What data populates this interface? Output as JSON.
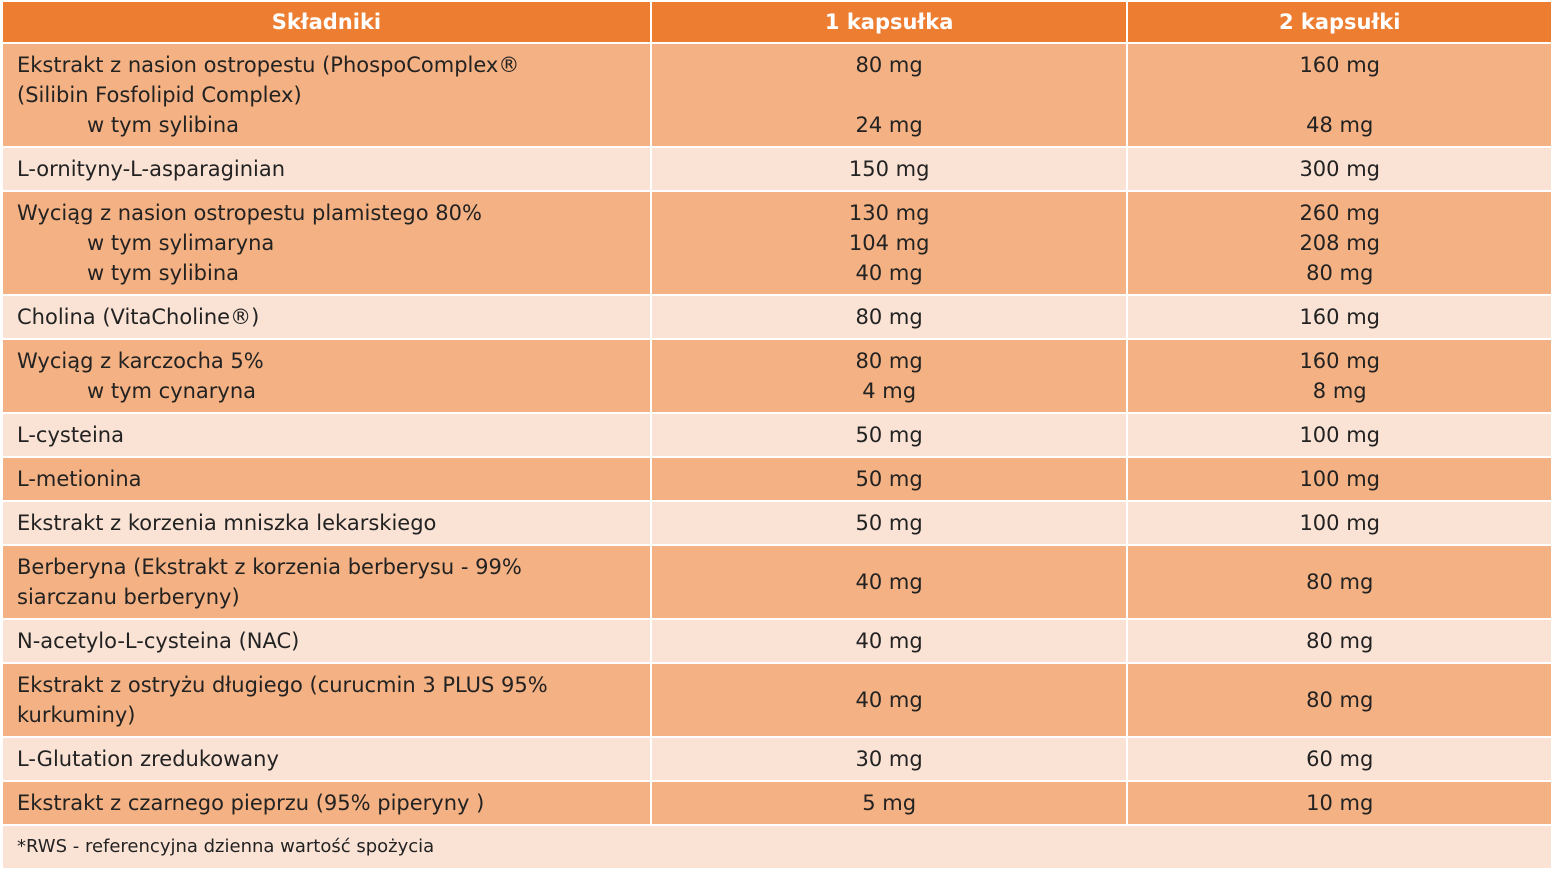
{
  "table": {
    "header": [
      "Składniki",
      "1 kapsułka",
      "2 kapsułki"
    ],
    "rows": [
      {
        "label": [
          "Ekstrakt z nasion ostropestu (PhospoComplex®",
          "(Silibin Fosfolipid Complex)"
        ],
        "one": "80 mg",
        "two": "160 mg",
        "sub": [
          {
            "label": "w tym sylibina",
            "one": "24 mg",
            "two": "48 mg"
          }
        ]
      },
      {
        "label": [
          "L-ornityny-L-asparaginian"
        ],
        "one": "150 mg",
        "two": "300 mg"
      },
      {
        "label": [
          "Wyciąg z nasion ostropestu plamistego 80%"
        ],
        "one": "130 mg",
        "two": "260 mg",
        "sub": [
          {
            "label": "w tym sylimaryna",
            "one": "104 mg",
            "two": "208 mg"
          },
          {
            "label": "w tym sylibina",
            "one": "40 mg",
            "two": "80 mg"
          }
        ]
      },
      {
        "label": [
          "Cholina (VitaCholine®)"
        ],
        "one": "80 mg",
        "two": "160 mg"
      },
      {
        "label": [
          "Wyciąg z karczocha 5%"
        ],
        "one": "80 mg",
        "two": "160 mg",
        "sub": [
          {
            "label": "w tym cynaryna",
            "one": "4 mg",
            "two": "8 mg"
          }
        ]
      },
      {
        "label": [
          "L-cysteina"
        ],
        "one": "50 mg",
        "two": "100 mg"
      },
      {
        "label": [
          "L-metionina"
        ],
        "one": "50 mg",
        "two": "100 mg"
      },
      {
        "label": [
          "Ekstrakt z korzenia mniszka lekarskiego"
        ],
        "one": "50 mg",
        "two": "100 mg"
      },
      {
        "label": [
          "Berberyna (Ekstrakt z korzenia berberysu - 99%",
          "siarczanu berberyny)"
        ],
        "one": "40 mg",
        "two": "80 mg"
      },
      {
        "label": [
          "N-acetylo-L-cysteina (NAC)"
        ],
        "one": "40 mg",
        "two": "80 mg"
      },
      {
        "label": [
          "Ekstrakt z ostryżu długiego (curucmin 3 PLUS 95%",
          "kurkuminy)"
        ],
        "one": "40 mg",
        "two": "80 mg"
      },
      {
        "label": [
          "L-Glutation zredukowany"
        ],
        "one": "30 mg",
        "two": "60 mg"
      },
      {
        "label": [
          "Ekstrakt z czarnego pieprzu (95% piperyny )"
        ],
        "one": "5 mg",
        "two": "10 mg"
      }
    ],
    "footnote": "*RWS - referencyjna dzienna wartość spożycia"
  }
}
